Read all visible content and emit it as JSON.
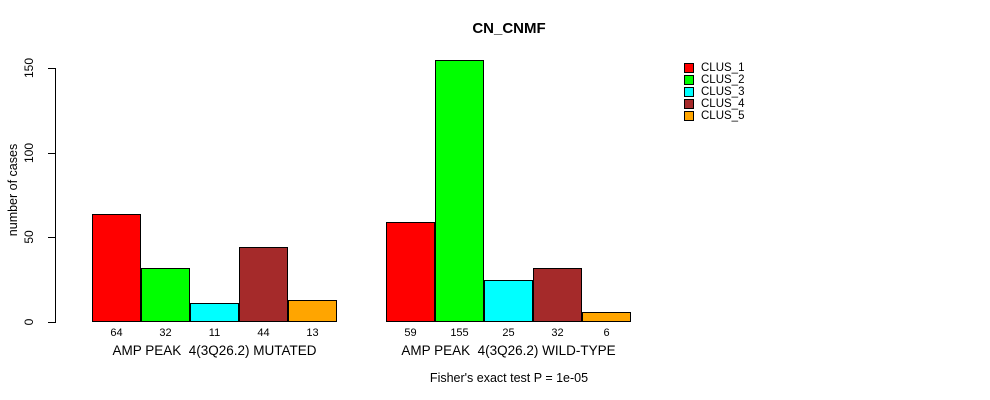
{
  "chart_data": {
    "type": "bar",
    "title": "CN_CNMF",
    "ylabel": "number of cases",
    "ylim": [
      0,
      155
    ],
    "yticks": [
      0,
      50,
      100,
      150
    ],
    "grid": false,
    "legend_position": "top-right",
    "series": [
      {
        "name": "CLUS_1",
        "color": "#FF0000"
      },
      {
        "name": "CLUS_2",
        "color": "#00FF00"
      },
      {
        "name": "CLUS_3",
        "color": "#00FFFF"
      },
      {
        "name": "CLUS_4",
        "color": "#A52A2A"
      },
      {
        "name": "CLUS_5",
        "color": "#FFA500"
      }
    ],
    "groups": [
      {
        "label": "AMP PEAK  4(3Q26.2) MUTATED",
        "values": [
          64,
          32,
          11,
          44,
          13
        ]
      },
      {
        "label": "AMP PEAK  4(3Q26.2) WILD-TYPE",
        "values": [
          59,
          155,
          25,
          32,
          6
        ]
      }
    ],
    "annotation": "Fisher's exact test P = 1e-05"
  }
}
